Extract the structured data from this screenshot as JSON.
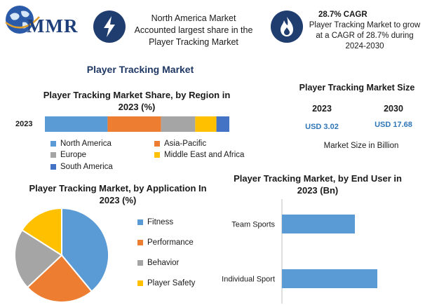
{
  "brand": {
    "logo_text": "MMR"
  },
  "header": {
    "info1": {
      "icon": "lightning-icon",
      "text": "North America Market Accounted largest share in the Player Tracking Market"
    },
    "info2": {
      "icon": "flame-icon",
      "heading": "28.7% CAGR",
      "text": "Player Tracking Market to grow at a CAGR of 28.7% during 2024-2030"
    }
  },
  "main_title": "Player Tracking Market",
  "market_size": {
    "title": "Player Tracking Market Size",
    "years": [
      "2023",
      "2030"
    ],
    "values": [
      "USD 3.02",
      "USD 17.68"
    ],
    "unit_label": "Market Size in Billion"
  },
  "colors": {
    "blue": "#5b9bd5",
    "orange": "#ed7d31",
    "gray": "#a5a5a5",
    "yellow": "#ffc000",
    "darkblue": "#4472c4",
    "navy": "#1f3d6e"
  },
  "chart_data": [
    {
      "type": "bar",
      "orientation": "horizontal-stacked",
      "title": "Player Tracking Market Share, by Region in 2023 (%)",
      "categories": [
        "2023"
      ],
      "series": [
        {
          "name": "North America",
          "values": [
            34
          ],
          "color": "#5b9bd5"
        },
        {
          "name": "Asia-Pacific",
          "values": [
            29
          ],
          "color": "#ed7d31"
        },
        {
          "name": "Europe",
          "values": [
            18.5
          ],
          "color": "#a5a5a5"
        },
        {
          "name": "Middle East and Africa",
          "values": [
            11.5
          ],
          "color": "#ffc000"
        },
        {
          "name": "South America",
          "values": [
            7
          ],
          "color": "#4472c4"
        }
      ],
      "xlim": [
        0,
        100
      ],
      "legend": "bottom"
    },
    {
      "type": "pie",
      "title": "Player Tracking Market, by Application In 2023 (%)",
      "labels": [
        "Fitness",
        "Performance",
        "Behavior",
        "Player Safety"
      ],
      "values": [
        39,
        24,
        21,
        16
      ],
      "colors": [
        "#5b9bd5",
        "#ed7d31",
        "#a5a5a5",
        "#ffc000"
      ],
      "legend": "right"
    },
    {
      "type": "bar",
      "orientation": "horizontal",
      "title": "Player Tracking Market, by End User in 2023 (Bn)",
      "categories": [
        "Team Sports",
        "Individual Sport"
      ],
      "values": [
        1.3,
        1.7
      ],
      "color": "#5b9bd5",
      "xlim": [
        0,
        2.5
      ],
      "grid": false
    }
  ]
}
